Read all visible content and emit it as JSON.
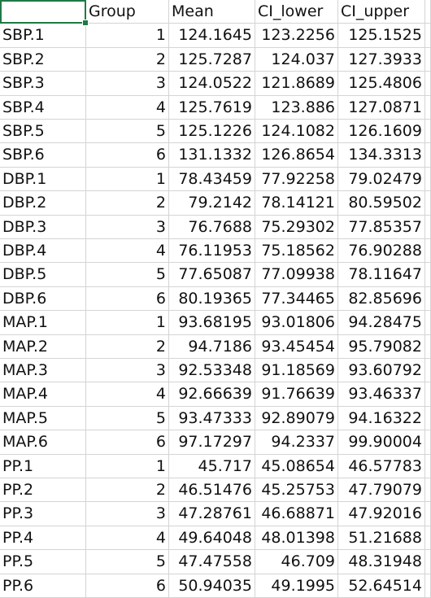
{
  "headers": [
    "",
    "Group",
    "Mean",
    "CI_lower",
    "CI_upper"
  ],
  "rows": [
    [
      "SBP.1",
      "1",
      "124.1645",
      "123.2256",
      "125.1525"
    ],
    [
      "SBP.2",
      "2",
      "125.7287",
      "124.037",
      "127.3933"
    ],
    [
      "SBP.3",
      "3",
      "124.0522",
      "121.8689",
      "125.4806"
    ],
    [
      "SBP.4",
      "4",
      "125.7619",
      "123.886",
      "127.0871"
    ],
    [
      "SBP.5",
      "5",
      "125.1226",
      "124.1082",
      "126.1609"
    ],
    [
      "SBP.6",
      "6",
      "131.1332",
      "126.8654",
      "134.3313"
    ],
    [
      "DBP.1",
      "1",
      "78.43459",
      "77.92258",
      "79.02479"
    ],
    [
      "DBP.2",
      "2",
      "79.2142",
      "78.14121",
      "80.59502"
    ],
    [
      "DBP.3",
      "3",
      "76.7688",
      "75.29302",
      "77.85357"
    ],
    [
      "DBP.4",
      "4",
      "76.11953",
      "75.18562",
      "76.90288"
    ],
    [
      "DBP.5",
      "5",
      "77.65087",
      "77.09938",
      "78.11647"
    ],
    [
      "DBP.6",
      "6",
      "80.19365",
      "77.34465",
      "82.85696"
    ],
    [
      "MAP.1",
      "1",
      "93.68195",
      "93.01806",
      "94.28475"
    ],
    [
      "MAP.2",
      "2",
      "94.7186",
      "93.45454",
      "95.79082"
    ],
    [
      "MAP.3",
      "3",
      "92.53348",
      "91.18569",
      "93.60792"
    ],
    [
      "MAP.4",
      "4",
      "92.66639",
      "91.76639",
      "93.46337"
    ],
    [
      "MAP.5",
      "5",
      "93.47333",
      "92.89079",
      "94.16322"
    ],
    [
      "MAP.6",
      "6",
      "97.17297",
      "94.2337",
      "99.90004"
    ],
    [
      "PP.1",
      "1",
      "45.717",
      "45.08654",
      "46.57783"
    ],
    [
      "PP.2",
      "2",
      "46.51476",
      "45.25753",
      "47.79079"
    ],
    [
      "PP.3",
      "3",
      "47.28761",
      "46.68871",
      "47.92016"
    ],
    [
      "PP.4",
      "4",
      "49.64048",
      "48.01398",
      "51.21688"
    ],
    [
      "PP.5",
      "5",
      "47.47558",
      "46.709",
      "48.31948"
    ],
    [
      "PP.6",
      "6",
      "50.94035",
      "49.1995",
      "52.64514"
    ]
  ],
  "colors": {
    "selection": "#1f7a45",
    "gridline": "#d4d4d4"
  }
}
